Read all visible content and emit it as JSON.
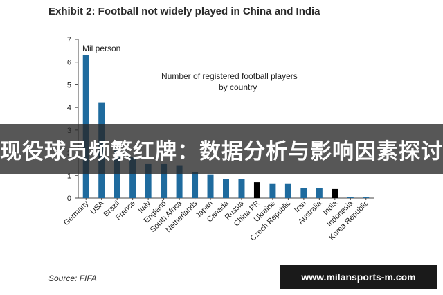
{
  "header": {
    "title": "Exhibit 2: Football not widely played in China and India"
  },
  "chart_data": {
    "type": "bar",
    "title": "",
    "annotation": "Number of registered football players by country",
    "annotation_lines": [
      "Number of registered football players",
      "by country"
    ],
    "unit_label": "Mil person",
    "xlabel": "",
    "ylabel": "",
    "ylim": [
      0,
      7
    ],
    "yticks": [
      0,
      1,
      2,
      3,
      4,
      5,
      6,
      7
    ],
    "grid": false,
    "legend": "none",
    "categories": [
      "Germany",
      "USA",
      "Brazil",
      "France",
      "Italy",
      "England",
      "South Africa",
      "Netherlands",
      "Japan",
      "Canada",
      "Russia",
      "China PR",
      "Ukraine",
      "Czech Republic",
      "Iran",
      "Australia",
      "India",
      "Indonesia",
      "Korea Republic"
    ],
    "values": [
      6.3,
      4.2,
      2.1,
      1.8,
      1.5,
      1.5,
      1.45,
      1.15,
      1.05,
      0.85,
      0.85,
      0.7,
      0.65,
      0.65,
      0.45,
      0.45,
      0.4,
      0.05,
      0.03
    ],
    "highlight_categories": [
      "China PR",
      "India"
    ],
    "colors": {
      "bar": "#1f6b9e",
      "highlight": "#000000",
      "axis": "#444444"
    }
  },
  "banner": {
    "text": "现役球员频繁红牌：数据分析与影响因素探讨"
  },
  "source": {
    "text": "Source: FIFA"
  },
  "watermark": {
    "text": "www.milansports-m.com"
  }
}
